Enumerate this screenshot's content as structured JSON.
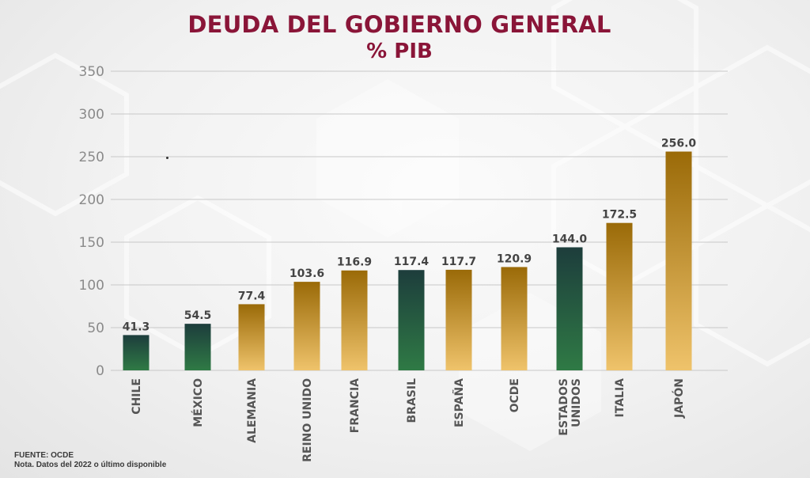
{
  "title": "DEUDA DEL GOBIERNO GENERAL",
  "subtitle": "% PIB",
  "source": "FUENTE: OCDE",
  "note": "Nota. Datos del 2022 o último disponible",
  "colors": {
    "title": "#8a1538",
    "green_top": "#1d3d3c",
    "green_bottom": "#2f7a45",
    "gold_top": "#9a6a08",
    "gold_bottom": "#efc36b",
    "label": "#444444",
    "grid": "#c8c8c8",
    "axis_text": "#8a8a8a"
  },
  "chart_data": {
    "type": "bar",
    "title": "DEUDA DEL GOBIERNO GENERAL",
    "subtitle": "% PIB",
    "categories": [
      "CHILE",
      "MÉXICO",
      "ALEMANIA",
      "REINO UNIDO",
      "FRANCIA",
      "BRASIL",
      "ESPAÑA",
      "OCDE",
      "ESTADOS UNIDOS",
      "ITALIA",
      "JAPÓN"
    ],
    "values": [
      41.3,
      54.5,
      77.4,
      103.6,
      116.9,
      117.4,
      117.7,
      120.9,
      144.0,
      172.5,
      256.0
    ],
    "value_labels": [
      "41.3",
      "54.5",
      "77.4",
      "103.6",
      "116.9",
      "117.4",
      "117.7",
      "120.9",
      "144.0",
      "172.5",
      "256.0"
    ],
    "bar_colors": [
      "green",
      "green",
      "gold",
      "gold",
      "gold",
      "green",
      "gold",
      "gold",
      "green",
      "gold",
      "gold"
    ],
    "ylim": [
      0,
      350
    ],
    "yticks": [
      0,
      50,
      100,
      150,
      200,
      250,
      300,
      350
    ],
    "grid": true,
    "legend": "none"
  }
}
